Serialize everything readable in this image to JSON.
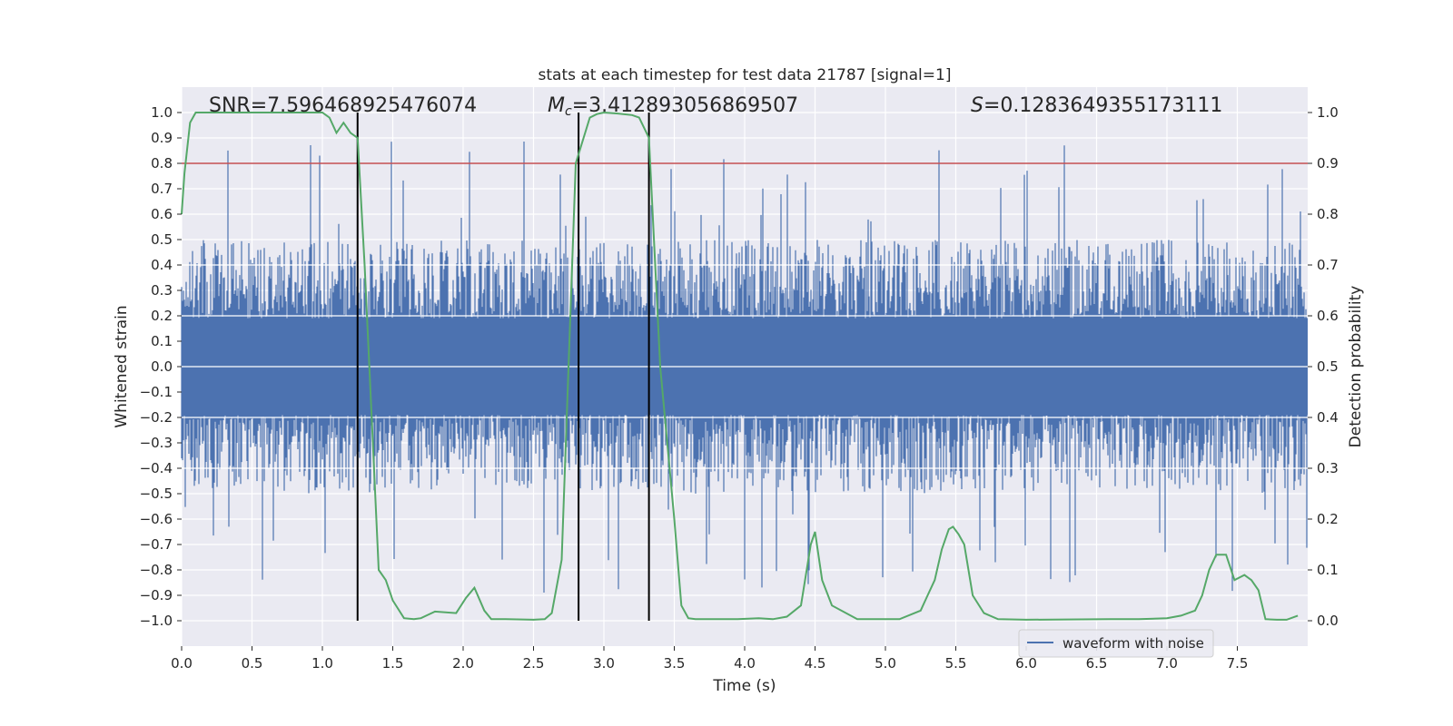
{
  "chart_data": {
    "type": "line",
    "title": "stats at each timestep for test data 21787 [signal=1]",
    "xlabel": "Time (s)",
    "ylabel": "Whitened strain",
    "ylabel_right": "Detection probability",
    "xlim": [
      0.0,
      8.0
    ],
    "ylim": [
      -1.1,
      1.1
    ],
    "ylim_right": [
      -0.05,
      1.05
    ],
    "x_ticks": [
      0.0,
      0.5,
      1.0,
      1.5,
      2.0,
      2.5,
      3.0,
      3.5,
      4.0,
      4.5,
      5.0,
      5.5,
      6.0,
      6.5,
      7.0,
      7.5
    ],
    "x_tick_labels": [
      "0.0",
      "0.5",
      "1.0",
      "1.5",
      "2.0",
      "2.5",
      "3.0",
      "3.5",
      "4.0",
      "4.5",
      "5.0",
      "5.5",
      "6.0",
      "6.5",
      "7.0",
      "7.5"
    ],
    "y_ticks": [
      1.0,
      0.9,
      0.8,
      0.7,
      0.6,
      0.5,
      0.4,
      0.3,
      0.2,
      0.1,
      0.0,
      -0.1,
      -0.2,
      -0.3,
      -0.4,
      -0.5,
      -0.6,
      -0.7,
      -0.8,
      -0.9,
      -1.0
    ],
    "y_tick_labels": [
      "1.0",
      "0.9",
      "0.8",
      "0.7",
      "0.6",
      "0.5",
      "0.4",
      "0.3",
      "0.2",
      "0.1",
      "0.0",
      "−0.1",
      "−0.2",
      "−0.3",
      "−0.4",
      "−0.5",
      "−0.6",
      "−0.7",
      "−0.8",
      "−0.9",
      "−1.0"
    ],
    "y_right_ticks": [
      1.0,
      0.9,
      0.8,
      0.7,
      0.6,
      0.5,
      0.4,
      0.3,
      0.2,
      0.1,
      0.0
    ],
    "y_right_tick_labels": [
      "1.0",
      "0.9",
      "0.8",
      "0.7",
      "0.6",
      "0.5",
      "0.4",
      "0.3",
      "0.2",
      "0.1",
      "0.0"
    ],
    "threshold": {
      "value": 0.9,
      "axis": "right",
      "color": "#c44e52"
    },
    "vertical_markers": [
      1.25,
      2.82,
      3.32
    ],
    "vertical_marker_range": [
      -1.0,
      1.0
    ],
    "annotations": {
      "snr": "SNR=7.596468925476074",
      "mc_symbol": "M",
      "mc_subscript": "c",
      "mc_value": "=3.412893056869507",
      "s_symbol": "S",
      "s_value": "=0.1283649355173111"
    },
    "legend": {
      "label": "waveform with noise",
      "location": "lower right"
    },
    "series": [
      {
        "name": "waveform with noise",
        "axis": "left",
        "color": "#4c72b0",
        "kind": "noise",
        "duration": 8.0,
        "core_amplitude": 0.19,
        "typical_peak": 0.5,
        "max_peak": 1.0
      },
      {
        "name": "detection probability",
        "axis": "right",
        "color": "#55a868",
        "x": [
          0.0,
          0.02,
          0.06,
          0.1,
          0.2,
          0.4,
          0.6,
          0.8,
          1.0,
          1.05,
          1.1,
          1.15,
          1.2,
          1.25,
          1.3,
          1.35,
          1.4,
          1.45,
          1.5,
          1.58,
          1.65,
          1.7,
          1.8,
          1.95,
          2.02,
          2.08,
          2.15,
          2.2,
          2.3,
          2.5,
          2.58,
          2.63,
          2.7,
          2.8,
          2.9,
          2.95,
          3.0,
          3.1,
          3.2,
          3.25,
          3.32,
          3.4,
          3.5,
          3.55,
          3.6,
          3.65,
          3.8,
          3.95,
          4.1,
          4.2,
          4.3,
          4.4,
          4.47,
          4.5,
          4.55,
          4.62,
          4.8,
          4.9,
          5.1,
          5.25,
          5.3,
          5.35,
          5.4,
          5.45,
          5.48,
          5.52,
          5.56,
          5.62,
          5.7,
          5.8,
          6.0,
          6.6,
          6.8,
          7.0,
          7.1,
          7.2,
          7.25,
          7.3,
          7.35,
          7.42,
          7.48,
          7.55,
          7.6,
          7.65,
          7.7,
          7.78,
          7.85,
          7.93
        ],
        "values": [
          0.8,
          0.88,
          0.98,
          1.0,
          1.0,
          1.0,
          1.0,
          1.0,
          1.0,
          0.99,
          0.96,
          0.98,
          0.96,
          0.95,
          0.7,
          0.4,
          0.1,
          0.08,
          0.04,
          0.005,
          0.003,
          0.005,
          0.018,
          0.015,
          0.045,
          0.065,
          0.02,
          0.003,
          0.003,
          0.002,
          0.003,
          0.015,
          0.12,
          0.9,
          0.99,
          0.997,
          1.0,
          0.998,
          0.995,
          0.99,
          0.95,
          0.5,
          0.2,
          0.03,
          0.005,
          0.003,
          0.003,
          0.003,
          0.005,
          0.003,
          0.008,
          0.03,
          0.15,
          0.175,
          0.08,
          0.03,
          0.003,
          0.003,
          0.003,
          0.02,
          0.05,
          0.08,
          0.14,
          0.18,
          0.185,
          0.17,
          0.15,
          0.05,
          0.015,
          0.003,
          0.002,
          0.003,
          0.003,
          0.005,
          0.01,
          0.02,
          0.05,
          0.1,
          0.13,
          0.13,
          0.08,
          0.09,
          0.08,
          0.06,
          0.003,
          0.002,
          0.002,
          0.01
        ]
      }
    ]
  }
}
